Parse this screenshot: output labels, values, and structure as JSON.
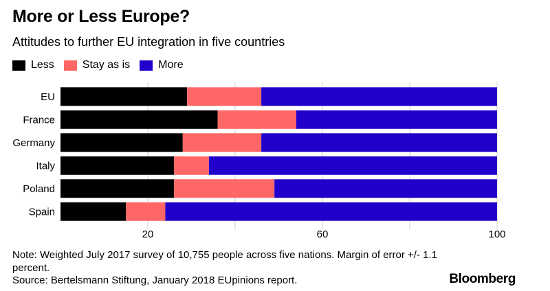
{
  "header": {
    "title": "More or Less Europe?",
    "subtitle": "Attitudes to further EU integration in five countries"
  },
  "footer": {
    "note": "Note: Weighted July 2017 survey of 10,755 people across five nations. Margin of error +/- 1.1 percent.",
    "source": "Source: Bertelsmann Stiftung, January 2018 EUpinions report.",
    "brand": "Bloomberg"
  },
  "colors": {
    "less": "#000000",
    "stay": "#ff6666",
    "more": "#2200cc",
    "grid": "#cccccc"
  },
  "chart_data": {
    "type": "bar",
    "orientation": "horizontal",
    "stacked": true,
    "categories": [
      "EU",
      "France",
      "Germany",
      "Italy",
      "Poland",
      "Spain"
    ],
    "series": [
      {
        "name": "Less",
        "values": [
          29,
          36,
          28,
          26,
          26,
          15
        ]
      },
      {
        "name": "Stay as is",
        "values": [
          17,
          18,
          18,
          8,
          23,
          9
        ]
      },
      {
        "name": "More",
        "values": [
          54,
          46,
          54,
          66,
          51,
          76
        ]
      }
    ],
    "xlim": [
      0,
      100
    ],
    "xticks": [
      20,
      60,
      100
    ],
    "legend_position": "top-left",
    "grid": true
  }
}
